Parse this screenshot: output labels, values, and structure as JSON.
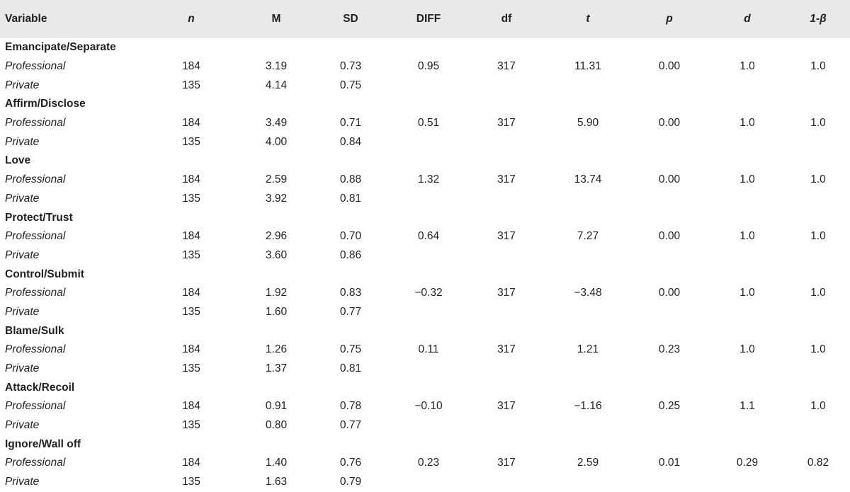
{
  "headers": [
    {
      "label": "Variable",
      "italic": false
    },
    {
      "label": "n",
      "italic": true
    },
    {
      "label": "M",
      "italic": false
    },
    {
      "label": "SD",
      "italic": false
    },
    {
      "label": "DIFF",
      "italic": false
    },
    {
      "label": "df",
      "italic": false
    },
    {
      "label": "t",
      "italic": true
    },
    {
      "label": "p",
      "italic": true
    },
    {
      "label": "d",
      "italic": true
    },
    {
      "label": "1-β",
      "italic": true
    }
  ],
  "groups": [
    {
      "name": "Emancipate/Separate",
      "professional": [
        "Professional",
        "184",
        "3.19",
        "0.73",
        "0.95",
        "317",
        "11.31",
        "0.00",
        "1.0",
        "1.0"
      ],
      "private": [
        "Private",
        "135",
        "4.14",
        "0.75"
      ]
    },
    {
      "name": "Affirm/Disclose",
      "professional": [
        "Professional",
        "184",
        "3.49",
        "0.71",
        "0.51",
        "317",
        "5.90",
        "0.00",
        "1.0",
        "1.0"
      ],
      "private": [
        "Private",
        "135",
        "4.00",
        "0.84"
      ]
    },
    {
      "name": "Love",
      "professional": [
        "Professional",
        "184",
        "2.59",
        "0.88",
        "1.32",
        "317",
        "13.74",
        "0.00",
        "1.0",
        "1.0"
      ],
      "private": [
        "Private",
        "135",
        "3.92",
        "0.81"
      ]
    },
    {
      "name": "Protect/Trust",
      "professional": [
        "Professional",
        "184",
        "2.96",
        "0.70",
        "0.64",
        "317",
        "7.27",
        "0.00",
        "1.0",
        "1.0"
      ],
      "private": [
        "Private",
        "135",
        "3.60",
        "0.86"
      ]
    },
    {
      "name": "Control/Submit",
      "professional": [
        "Professional",
        "184",
        "1.92",
        "0.83",
        "−0.32",
        "317",
        "−3.48",
        "0.00",
        "1.0",
        "1.0"
      ],
      "private": [
        "Private",
        "135",
        "1.60",
        "0.77"
      ]
    },
    {
      "name": "Blame/Sulk",
      "professional": [
        "Professional",
        "184",
        "1.26",
        "0.75",
        "0.11",
        "317",
        "1.21",
        "0.23",
        "1.0",
        "1.0"
      ],
      "private": [
        "Private",
        "135",
        "1.37",
        "0.81"
      ]
    },
    {
      "name": "Attack/Recoil",
      "professional": [
        "Professional",
        "184",
        "0.91",
        "0.78",
        "−0.10",
        "317",
        "−1.16",
        "0.25",
        "1.1",
        "1.0"
      ],
      "private": [
        "Private",
        "135",
        "0.80",
        "0.77"
      ]
    },
    {
      "name": "Ignore/Wall off",
      "professional": [
        "Professional",
        "184",
        "1.40",
        "0.76",
        "0.23",
        "317",
        "2.59",
        "0.01",
        "0.29",
        "0.82"
      ],
      "private": [
        "Private",
        "135",
        "1.63",
        "0.79"
      ]
    }
  ]
}
